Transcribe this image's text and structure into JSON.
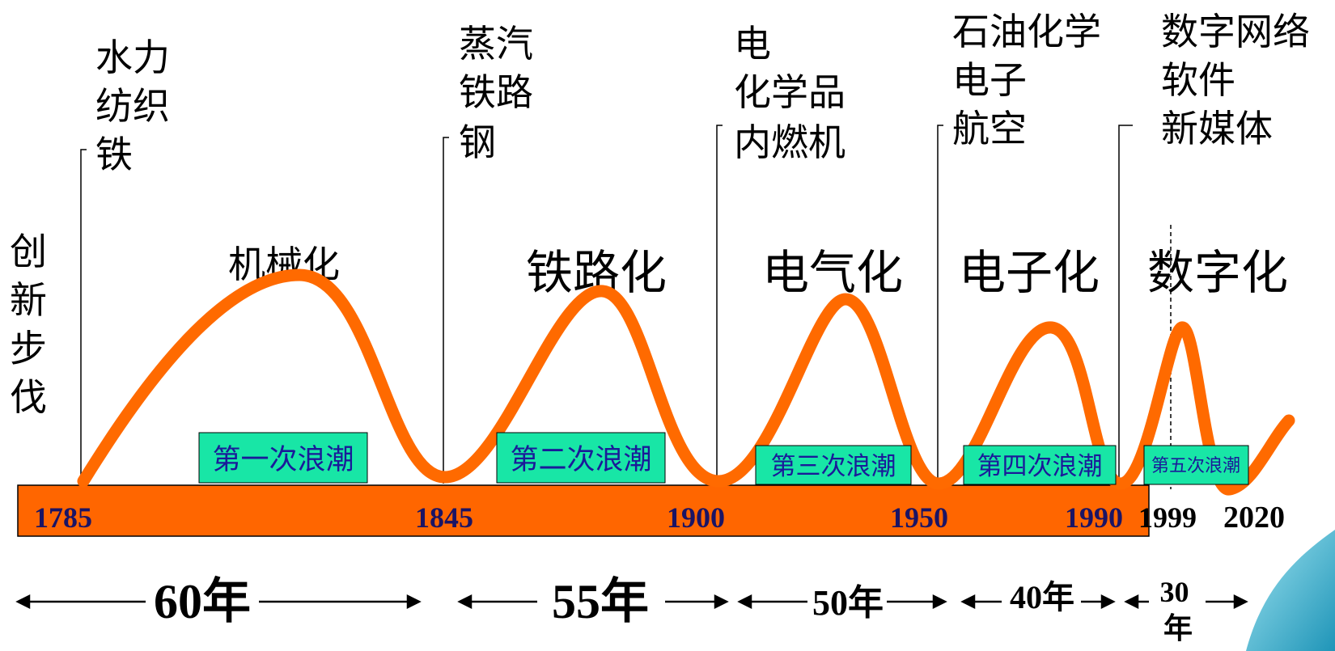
{
  "side_label": [
    "创",
    "新",
    "步",
    "伐"
  ],
  "waves": [
    {
      "technologies": [
        "水力",
        "纺织",
        "铁"
      ],
      "theme": "机械化",
      "label": "第一次浪潮",
      "start_year": "1785",
      "duration": "60年"
    },
    {
      "technologies": [
        "蒸汽",
        "铁路",
        "钢"
      ],
      "theme": "铁路化",
      "label": "第二次浪潮",
      "start_year": "1845",
      "duration": "55年"
    },
    {
      "technologies": [
        "电",
        "化学品",
        "内燃机"
      ],
      "theme": "电气化",
      "label": "第三次浪潮",
      "start_year": "1900",
      "duration": "50年"
    },
    {
      "technologies": [
        "石油化学",
        "电子",
        "航空"
      ],
      "theme": "电子化",
      "label": "第四次浪潮",
      "start_year": "1950",
      "duration": "40年"
    },
    {
      "technologies": [
        "数字网络",
        "软件",
        "新媒体"
      ],
      "theme": "数字化",
      "label": "第五次浪潮",
      "start_year": "1990",
      "duration": "30年"
    }
  ],
  "extra_years": [
    "1999",
    "2020"
  ],
  "colors": {
    "curve": "#FF6A00",
    "timeline_bar": "#FF6600",
    "wave_label_bg": "#18E6A6",
    "accent_corner": "#2AA9C9"
  }
}
